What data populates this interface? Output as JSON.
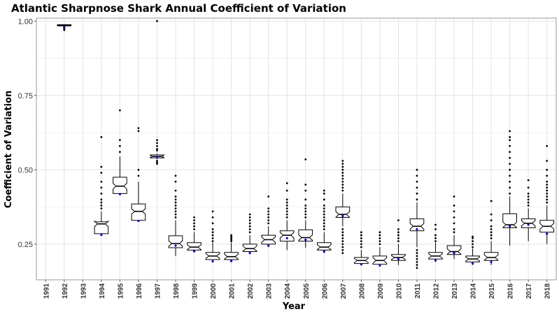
{
  "chart_data": {
    "type": "boxplot",
    "title": "Atlantic Sharpnose Shark Annual Coefficient of Variation",
    "xlabel": "Year",
    "ylabel": "Coefficient of Variation",
    "ylim": [
      0.13,
      1.01
    ],
    "yticks": [
      0.25,
      0.5,
      0.75,
      1.0
    ],
    "ytick_labels": [
      "0.25",
      "0.50",
      "0.75",
      "1.00"
    ],
    "grid": true,
    "categories": [
      "1991",
      "1992",
      "1993",
      "1994",
      "1995",
      "1996",
      "1997",
      "1998",
      "1999",
      "2000",
      "2001",
      "2002",
      "2003",
      "2004",
      "2005",
      "2006",
      "2007",
      "2008",
      "2009",
      "2010",
      "2011",
      "2012",
      "2013",
      "2014",
      "2015",
      "2016",
      "2017",
      "2018"
    ],
    "boxes": [
      null,
      {
        "q1": 0.984,
        "median": 0.986,
        "q3": 0.988,
        "whisker_low": 0.982,
        "whisker_high": 0.99,
        "mean": 0.98,
        "outliers": [
          0.975,
          0.972,
          0.97
        ]
      },
      null,
      {
        "q1": 0.285,
        "median": 0.318,
        "q3": 0.325,
        "whisker_low": 0.28,
        "whisker_high": 0.36,
        "mean": 0.281,
        "outliers": [
          0.37,
          0.38,
          0.39,
          0.4,
          0.42,
          0.44,
          0.46,
          0.49,
          0.51,
          0.61
        ]
      },
      {
        "q1": 0.42,
        "median": 0.445,
        "q3": 0.475,
        "whisker_low": 0.415,
        "whisker_high": 0.545,
        "mean": 0.418,
        "outliers": [
          0.56,
          0.58,
          0.6,
          0.7
        ]
      },
      {
        "q1": 0.33,
        "median": 0.36,
        "q3": 0.385,
        "whisker_low": 0.325,
        "whisker_high": 0.46,
        "mean": 0.328,
        "outliers": [
          0.48,
          0.5,
          0.63,
          0.64
        ]
      },
      {
        "q1": 0.54,
        "median": 0.545,
        "q3": 0.55,
        "whisker_low": 0.535,
        "whisker_high": 0.555,
        "mean": 0.543,
        "outliers": [
          0.52,
          0.525,
          0.53,
          0.565,
          0.57,
          0.58,
          0.59,
          0.6,
          1.0
        ]
      },
      {
        "q1": 0.238,
        "median": 0.252,
        "q3": 0.278,
        "whisker_low": 0.21,
        "whisker_high": 0.33,
        "mean": 0.245,
        "outliers": [
          0.34,
          0.35,
          0.36,
          0.37,
          0.38,
          0.39,
          0.4,
          0.41,
          0.43,
          0.46,
          0.48
        ]
      },
      {
        "q1": 0.23,
        "median": 0.24,
        "q3": 0.255,
        "whisker_low": 0.222,
        "whisker_high": 0.29,
        "mean": 0.226,
        "outliers": [
          0.3,
          0.31,
          0.32,
          0.33,
          0.34
        ]
      },
      {
        "q1": 0.198,
        "median": 0.21,
        "q3": 0.222,
        "whisker_low": 0.19,
        "whisker_high": 0.255,
        "mean": 0.192,
        "outliers": [
          0.26,
          0.27,
          0.28,
          0.29,
          0.3,
          0.32,
          0.34,
          0.36
        ]
      },
      {
        "q1": 0.198,
        "median": 0.208,
        "q3": 0.222,
        "whisker_low": 0.19,
        "whisker_high": 0.255,
        "mean": 0.193,
        "outliers": [
          0.26,
          0.265,
          0.27,
          0.275,
          0.28
        ]
      },
      {
        "q1": 0.225,
        "median": 0.235,
        "q3": 0.25,
        "whisker_low": 0.218,
        "whisker_high": 0.28,
        "mean": 0.22,
        "outliers": [
          0.29,
          0.3,
          0.31,
          0.32,
          0.33,
          0.34,
          0.35
        ]
      },
      {
        "q1": 0.25,
        "median": 0.265,
        "q3": 0.28,
        "whisker_low": 0.24,
        "whisker_high": 0.31,
        "mean": 0.245,
        "outliers": [
          0.32,
          0.33,
          0.34,
          0.35,
          0.36,
          0.37,
          0.41
        ]
      },
      {
        "q1": 0.26,
        "median": 0.28,
        "q3": 0.295,
        "whisker_low": 0.23,
        "whisker_high": 0.33,
        "mean": 0.27,
        "outliers": [
          0.34,
          0.35,
          0.36,
          0.37,
          0.38,
          0.39,
          0.4,
          0.43,
          0.455
        ]
      },
      {
        "q1": 0.26,
        "median": 0.272,
        "q3": 0.298,
        "whisker_low": 0.238,
        "whisker_high": 0.33,
        "mean": 0.265,
        "outliers": [
          0.34,
          0.35,
          0.36,
          0.37,
          0.38,
          0.4,
          0.43,
          0.45,
          0.535
        ]
      },
      {
        "q1": 0.23,
        "median": 0.24,
        "q3": 0.255,
        "whisker_low": 0.22,
        "whisker_high": 0.29,
        "mean": 0.225,
        "outliers": [
          0.3,
          0.31,
          0.32,
          0.33,
          0.34,
          0.35,
          0.36,
          0.37,
          0.38,
          0.4,
          0.42,
          0.43
        ]
      },
      {
        "q1": 0.34,
        "median": 0.35,
        "q3": 0.375,
        "whisker_low": 0.31,
        "whisker_high": 0.42,
        "mean": 0.345,
        "outliers": [
          0.22,
          0.23,
          0.24,
          0.25,
          0.26,
          0.27,
          0.28,
          0.29,
          0.3,
          0.43,
          0.44,
          0.45,
          0.46,
          0.47,
          0.48,
          0.49,
          0.5,
          0.51,
          0.52,
          0.53
        ]
      },
      {
        "q1": 0.185,
        "median": 0.195,
        "q3": 0.205,
        "whisker_low": 0.18,
        "whisker_high": 0.23,
        "mean": 0.182,
        "outliers": [
          0.24,
          0.25,
          0.26,
          0.27,
          0.28,
          0.29
        ]
      },
      {
        "q1": 0.182,
        "median": 0.195,
        "q3": 0.21,
        "whisker_low": 0.178,
        "whisker_high": 0.24,
        "mean": 0.178,
        "outliers": [
          0.25,
          0.26,
          0.27,
          0.28,
          0.29
        ]
      },
      {
        "q1": 0.195,
        "median": 0.205,
        "q3": 0.215,
        "whisker_low": 0.18,
        "whisker_high": 0.25,
        "mean": 0.2,
        "outliers": [
          0.26,
          0.27,
          0.28,
          0.29,
          0.3,
          0.33
        ]
      },
      {
        "q1": 0.295,
        "median": 0.31,
        "q3": 0.335,
        "whisker_low": 0.24,
        "whisker_high": 0.39,
        "mean": 0.3,
        "outliers": [
          0.17,
          0.18,
          0.19,
          0.2,
          0.21,
          0.22,
          0.23,
          0.4,
          0.42,
          0.44,
          0.46,
          0.48,
          0.5
        ]
      },
      {
        "q1": 0.2,
        "median": 0.21,
        "q3": 0.222,
        "whisker_low": 0.19,
        "whisker_high": 0.255,
        "mean": 0.195,
        "outliers": [
          0.26,
          0.27,
          0.28,
          0.3,
          0.315
        ]
      },
      {
        "q1": 0.215,
        "median": 0.225,
        "q3": 0.245,
        "whisker_low": 0.2,
        "whisker_high": 0.28,
        "mean": 0.22,
        "outliers": [
          0.29,
          0.3,
          0.32,
          0.34,
          0.36,
          0.38,
          0.41
        ]
      },
      {
        "q1": 0.19,
        "median": 0.2,
        "q3": 0.21,
        "whisker_low": 0.18,
        "whisker_high": 0.235,
        "mean": 0.185,
        "outliers": [
          0.24,
          0.25,
          0.26,
          0.27,
          0.275
        ]
      },
      {
        "q1": 0.195,
        "median": 0.205,
        "q3": 0.222,
        "whisker_low": 0.18,
        "whisker_high": 0.26,
        "mean": 0.19,
        "outliers": [
          0.27,
          0.28,
          0.29,
          0.3,
          0.31,
          0.33,
          0.35,
          0.395
        ]
      },
      {
        "q1": 0.305,
        "median": 0.315,
        "q3": 0.352,
        "whisker_low": 0.245,
        "whisker_high": 0.41,
        "mean": 0.31,
        "outliers": [
          0.42,
          0.44,
          0.46,
          0.48,
          0.5,
          0.52,
          0.54,
          0.56,
          0.58,
          0.6,
          0.61,
          0.63
        ]
      },
      {
        "q1": 0.305,
        "median": 0.32,
        "q3": 0.335,
        "whisker_low": 0.26,
        "whisker_high": 0.37,
        "mean": 0.315,
        "outliers": [
          0.38,
          0.39,
          0.4,
          0.41,
          0.42,
          0.44,
          0.465
        ]
      },
      {
        "q1": 0.29,
        "median": 0.31,
        "q3": 0.33,
        "whisker_low": 0.25,
        "whisker_high": 0.38,
        "mean": 0.285,
        "outliers": [
          0.39,
          0.4,
          0.41,
          0.42,
          0.43,
          0.44,
          0.45,
          0.46,
          0.48,
          0.5,
          0.53,
          0.58
        ]
      }
    ],
    "colors": {
      "box_fill": "#ffffff",
      "box_stroke": "#000000",
      "mean_point": "#0000cc",
      "outlier": "#000000",
      "grid": "#e3e3e3"
    }
  }
}
